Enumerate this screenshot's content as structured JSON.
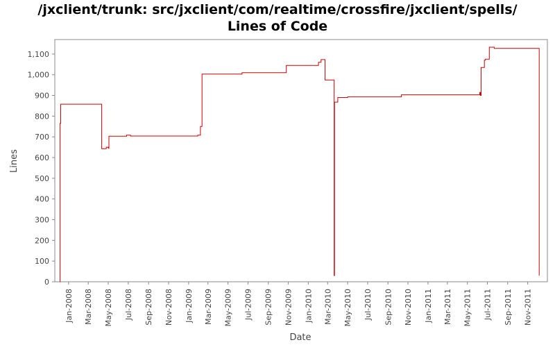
{
  "chart_data": {
    "type": "line",
    "title_line1": "/jxclient/trunk: src/jxclient/com/realtime/crossfire/jxclient/spells/",
    "title_line2": "Lines of Code",
    "xlabel": "Date",
    "ylabel": "Lines",
    "ylim": [
      0,
      1170
    ],
    "yticks": [
      0,
      100,
      200,
      300,
      400,
      500,
      600,
      700,
      800,
      900,
      1000,
      1100
    ],
    "ytick_labels": [
      "0",
      "100",
      "200",
      "300",
      "400",
      "500",
      "600",
      "700",
      "800",
      "900",
      "1,000",
      "1,100"
    ],
    "xlim": [
      "2007-11-20",
      "2011-12-31"
    ],
    "xticks": [
      {
        "date": "2008-01-01",
        "label": "Jan-2008"
      },
      {
        "date": "2008-03-01",
        "label": "Mar-2008"
      },
      {
        "date": "2008-05-01",
        "label": "May-2008"
      },
      {
        "date": "2008-07-01",
        "label": "Jul-2008"
      },
      {
        "date": "2008-09-01",
        "label": "Sep-2008"
      },
      {
        "date": "2008-11-01",
        "label": "Nov-2008"
      },
      {
        "date": "2009-01-01",
        "label": "Jan-2009"
      },
      {
        "date": "2009-03-01",
        "label": "Mar-2009"
      },
      {
        "date": "2009-05-01",
        "label": "May-2009"
      },
      {
        "date": "2009-07-01",
        "label": "Jul-2009"
      },
      {
        "date": "2009-09-01",
        "label": "Sep-2009"
      },
      {
        "date": "2009-11-01",
        "label": "Nov-2009"
      },
      {
        "date": "2010-01-01",
        "label": "Jan-2010"
      },
      {
        "date": "2010-03-01",
        "label": "Mar-2010"
      },
      {
        "date": "2010-05-01",
        "label": "May-2010"
      },
      {
        "date": "2010-07-01",
        "label": "Jul-2010"
      },
      {
        "date": "2010-09-01",
        "label": "Sep-2010"
      },
      {
        "date": "2010-11-01",
        "label": "Nov-2010"
      },
      {
        "date": "2011-01-01",
        "label": "Jan-2011"
      },
      {
        "date": "2011-03-01",
        "label": "Mar-2011"
      },
      {
        "date": "2011-05-01",
        "label": "May-2011"
      },
      {
        "date": "2011-07-01",
        "label": "Jul-2011"
      },
      {
        "date": "2011-09-01",
        "label": "Sep-2011"
      },
      {
        "date": "2011-11-01",
        "label": "Nov-2011"
      }
    ],
    "grid": false,
    "line_color": "#cc0000",
    "series": [
      {
        "step": true,
        "points": [
          [
            "2007-12-05",
            0
          ],
          [
            "2007-12-06",
            765
          ],
          [
            "2007-12-08",
            858
          ],
          [
            "2008-04-11",
            643
          ],
          [
            "2008-04-25",
            650
          ],
          [
            "2008-05-01",
            645
          ],
          [
            "2008-05-03",
            703
          ],
          [
            "2008-06-26",
            708
          ],
          [
            "2008-07-08",
            704
          ],
          [
            "2009-01-29",
            708
          ],
          [
            "2009-02-06",
            750
          ],
          [
            "2009-02-11",
            1003
          ],
          [
            "2009-06-13",
            1010
          ],
          [
            "2009-10-26",
            1045
          ],
          [
            "2010-02-01",
            1060
          ],
          [
            "2010-02-09",
            1073
          ],
          [
            "2010-02-21",
            975
          ],
          [
            "2010-03-21",
            30
          ],
          [
            "2010-03-22",
            868
          ],
          [
            "2010-04-01",
            890
          ],
          [
            "2010-05-01",
            893
          ],
          [
            "2010-10-12",
            903
          ],
          [
            "2011-06-08",
            915
          ],
          [
            "2011-06-10",
            900
          ],
          [
            "2011-06-12",
            1035
          ],
          [
            "2011-06-22",
            1070
          ],
          [
            "2011-06-25",
            1075
          ],
          [
            "2011-07-07",
            1133
          ],
          [
            "2011-07-22",
            1127
          ],
          [
            "2011-12-06",
            30
          ]
        ]
      }
    ]
  }
}
